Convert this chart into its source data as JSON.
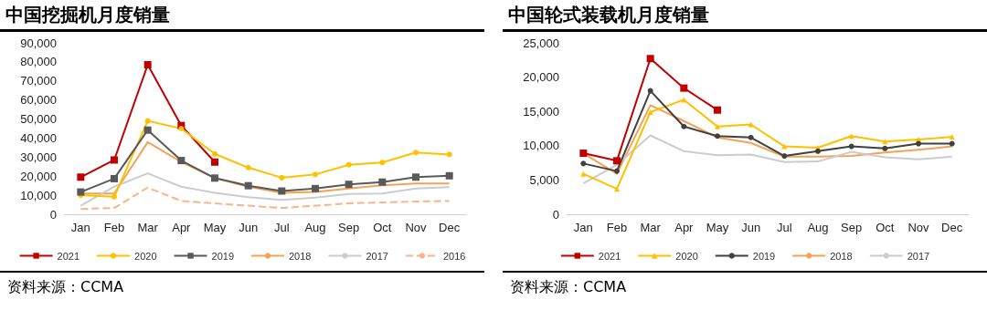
{
  "chart_data": [
    {
      "type": "line",
      "title": "中国挖掘机月度销量",
      "categories": [
        "Jan",
        "Feb",
        "Mar",
        "Apr",
        "May",
        "Jun",
        "Jul",
        "Aug",
        "Sep",
        "Oct",
        "Nov",
        "Dec"
      ],
      "series": [
        {
          "name": "2021",
          "color": "#c00000",
          "marker": "square",
          "values": [
            19500,
            28500,
            78500,
            46600,
            27400,
            null,
            null,
            null,
            null,
            null,
            null,
            null
          ]
        },
        {
          "name": "2020",
          "color": "#ffc000",
          "marker": "circle",
          "values": [
            10000,
            9200,
            49000,
            45000,
            31700,
            24500,
            19200,
            20900,
            26000,
            27200,
            32400,
            31400
          ]
        },
        {
          "name": "2019",
          "color": "#595959",
          "marker": "square",
          "values": [
            11700,
            18700,
            44200,
            28200,
            19000,
            15000,
            12200,
            13500,
            15700,
            16900,
            19500,
            20200
          ]
        },
        {
          "name": "2018",
          "color": "#f5a256",
          "marker": "none",
          "values": [
            10900,
            10900,
            37900,
            27500,
            19000,
            14500,
            11200,
            11700,
            13500,
            15200,
            16200,
            16200
          ]
        },
        {
          "name": "2017",
          "color": "#cccccc",
          "marker": "none",
          "values": [
            4500,
            14500,
            21500,
            14500,
            11200,
            9000,
            7500,
            8700,
            10700,
            10900,
            13500,
            14200
          ]
        },
        {
          "name": "2016",
          "color": "#f8b48c",
          "marker": "none",
          "line_style": "dashed",
          "values": [
            2800,
            3300,
            14000,
            7000,
            5700,
            4500,
            3300,
            4500,
            5700,
            6200,
            6700,
            7000
          ]
        }
      ],
      "ylim": [
        0,
        90000
      ],
      "yticks": [
        0,
        {
          "value": 10000,
          "label": "10,000"
        },
        {
          "value": 20000,
          "label": "20,000"
        },
        {
          "value": 30000,
          "label": "30,000"
        },
        {
          "value": 40000,
          "label": "40,000"
        },
        {
          "value": 50000,
          "label": "50,000"
        },
        {
          "value": 60000,
          "label": "60,000"
        },
        {
          "value": 70000,
          "label": "70,000"
        },
        {
          "value": 80000,
          "label": "80,000"
        },
        {
          "value": 90000,
          "label": "90,000"
        }
      ],
      "legend": "bottom",
      "annotations": [
        "资料来源：CCMA"
      ]
    },
    {
      "type": "line",
      "title": "中国轮式装载机月度销量",
      "categories": [
        "Jan",
        "Feb",
        "Mar",
        "Apr",
        "May",
        "Jun",
        "Jul",
        "Aug",
        "Sep",
        "Oct",
        "Nov",
        "Dec"
      ],
      "series": [
        {
          "name": "2021",
          "color": "#c00000",
          "marker": "square",
          "values": [
            8900,
            7800,
            22700,
            18400,
            15200,
            null,
            null,
            null,
            null,
            null,
            null,
            null
          ]
        },
        {
          "name": "2020",
          "color": "#ffc000",
          "marker": "triangle",
          "values": [
            5900,
            3700,
            14900,
            16700,
            12800,
            13100,
            9900,
            9700,
            11400,
            10600,
            10900,
            11300
          ]
        },
        {
          "name": "2019",
          "color": "#404040",
          "marker": "circle",
          "values": [
            7400,
            6300,
            18000,
            12800,
            11400,
            11200,
            8500,
            9200,
            9900,
            9600,
            10300,
            10300
          ]
        },
        {
          "name": "2018",
          "color": "#f5a256",
          "marker": "none",
          "values": [
            8900,
            5900,
            15900,
            13600,
            11200,
            10400,
            8400,
            8400,
            8500,
            9000,
            9400,
            9900
          ]
        },
        {
          "name": "2017",
          "color": "#cccccc",
          "marker": "none",
          "values": [
            4500,
            7200,
            11500,
            9200,
            8600,
            8700,
            7600,
            7700,
            9100,
            8300,
            8000,
            8400
          ]
        }
      ],
      "ylim": [
        0,
        25000
      ],
      "yticks": [
        0,
        {
          "value": 5000,
          "label": "5,000"
        },
        {
          "value": 10000,
          "label": "10,000"
        },
        {
          "value": 15000,
          "label": "15,000"
        },
        {
          "value": 20000,
          "label": "20,000"
        },
        {
          "value": 25000,
          "label": "25,000"
        }
      ],
      "legend": "bottom",
      "annotations": [
        "资料来源：CCMA"
      ]
    }
  ]
}
